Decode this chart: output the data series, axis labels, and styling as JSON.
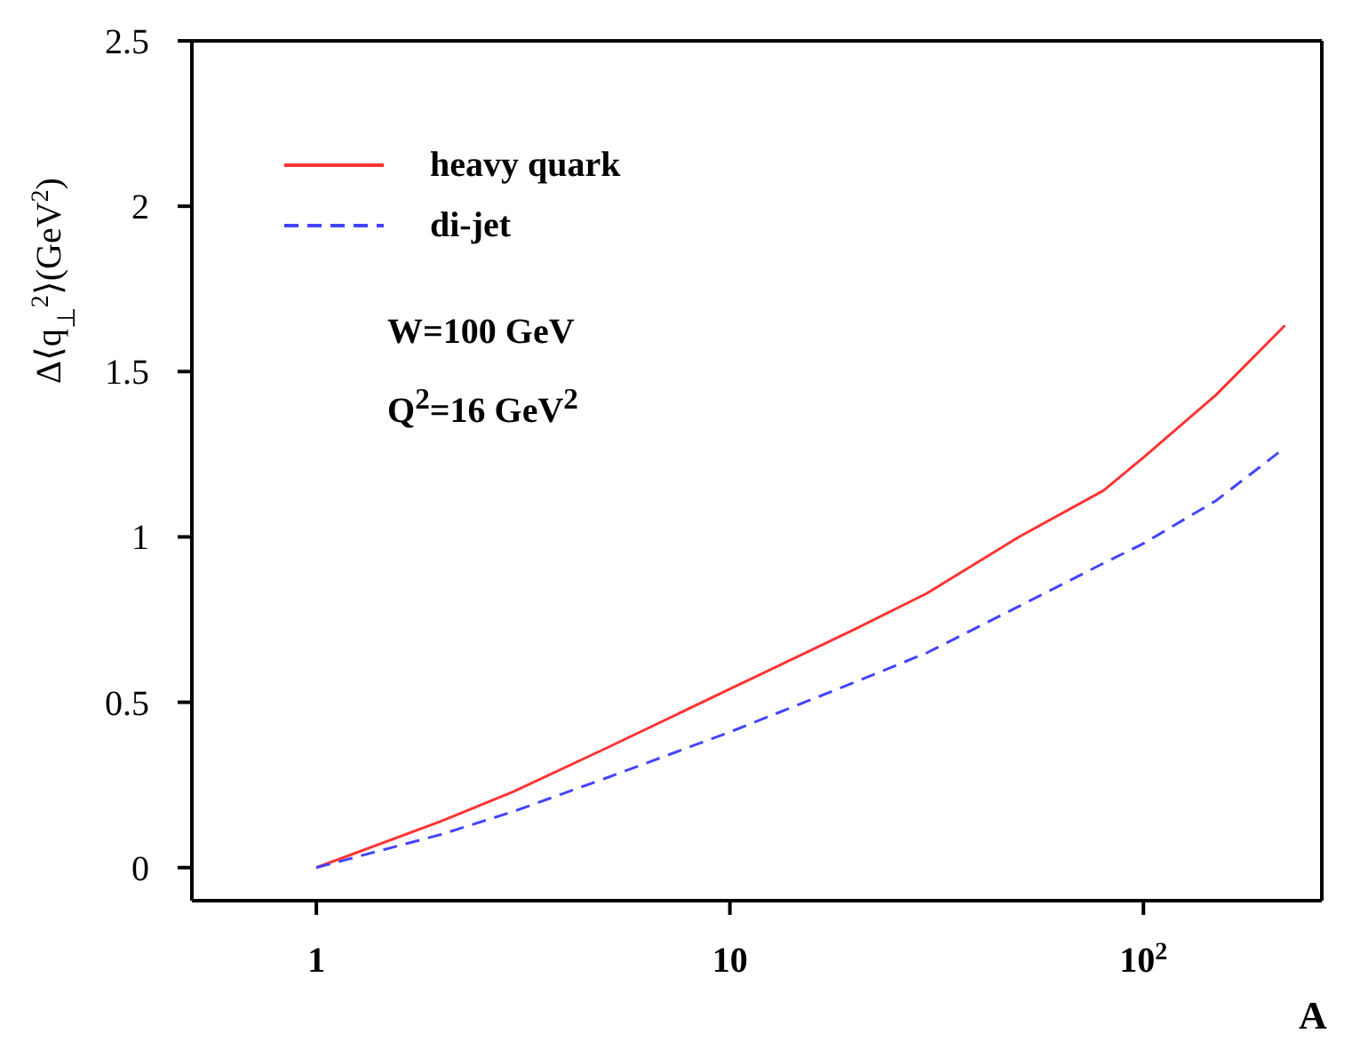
{
  "chart_data": {
    "type": "line",
    "xlabel": "A",
    "ylabel": "Δ⟨q$_{⊥}$$^{2}$⟩(GeV$^{2}$)",
    "x": [
      1,
      2,
      3,
      5,
      10,
      20,
      30,
      50,
      80,
      100,
      150,
      220
    ],
    "series": [
      {
        "name": "heavy quark",
        "color": "#ff3333",
        "line_style": "solid",
        "values": [
          0,
          0.14,
          0.23,
          0.36,
          0.54,
          0.72,
          0.83,
          1.0,
          1.14,
          1.24,
          1.43,
          1.64
        ]
      },
      {
        "name": "di-jet",
        "color": "#4444ff",
        "line_style": "dashed",
        "values": [
          0,
          0.1,
          0.17,
          0.27,
          0.41,
          0.56,
          0.65,
          0.79,
          0.92,
          0.98,
          1.11,
          1.27
        ]
      }
    ],
    "log": "x",
    "xlim": [
      0.5,
      270
    ],
    "xticks": [
      1,
      10,
      {
        "value": 100,
        "label": "10$^{2}$"
      }
    ],
    "ylim": [
      -0.1,
      2.5
    ],
    "yticks": [
      0,
      0.5,
      1,
      1.5,
      2,
      2.5
    ],
    "grid": false,
    "legend": "top left",
    "marker": "none",
    "annotations": [
      "W=100 GeV",
      "Q$^{2}$=16 GeV$^{2}$"
    ]
  }
}
